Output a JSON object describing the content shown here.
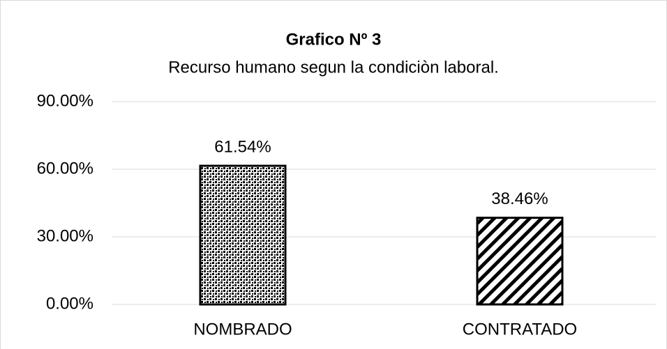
{
  "chart_data": {
    "type": "bar",
    "title": "Grafico Nº 3",
    "subtitle": "Recurso humano segun la condiciòn laboral.",
    "categories": [
      "NOMBRADO",
      "CONTRATADO"
    ],
    "values": [
      61.54,
      38.46
    ],
    "value_labels": [
      "61.54%",
      "38.46%"
    ],
    "patterns": [
      "dots",
      "diagonal-stripes"
    ],
    "ylim": [
      0,
      90
    ],
    "yticks": [
      {
        "value": 0,
        "label": "0.00%"
      },
      {
        "value": 30,
        "label": "30.00%"
      },
      {
        "value": 60,
        "label": "60.00%"
      },
      {
        "value": 90,
        "label": "90.00%"
      }
    ],
    "grid": true
  }
}
